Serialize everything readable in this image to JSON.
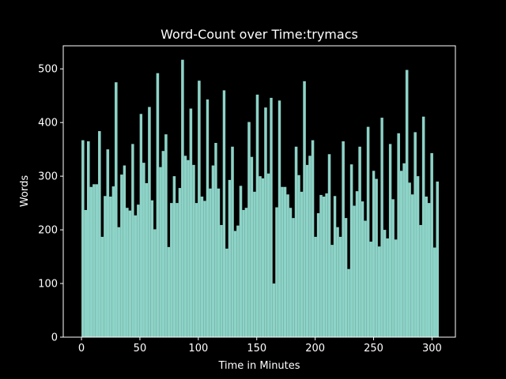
{
  "chart_data": {
    "type": "bar",
    "title": "Word-Count over Time:trymacs",
    "x_label": "Time in Minutes",
    "y_label": "Words",
    "color": "#8dd3c7",
    "x": [
      0,
      2.4,
      4.7,
      7.1,
      9.5,
      11.9,
      14.2,
      16.6,
      19,
      21.3,
      23.7,
      26.1,
      28.4,
      30.8,
      33.2,
      35.6,
      37.9,
      40.3,
      42.7,
      45,
      47.4,
      49.8,
      52.1,
      54.5,
      56.9,
      59.3,
      61.6,
      64,
      66.4,
      68.7,
      71.1,
      73.5,
      75.8,
      78.2,
      80.6,
      83,
      85.3,
      87.7,
      90.1,
      92.4,
      94.8,
      97.2,
      99.5,
      101.9,
      104.3,
      106.7,
      109,
      111.4,
      113.8,
      116.1,
      118.5,
      120.9,
      123.2,
      125.6,
      128,
      130.4,
      132.7,
      135.1,
      137.5,
      139.8,
      142.2,
      144.6,
      146.9,
      149.3,
      151.7,
      154.1,
      156.4,
      158.8,
      161.2,
      163.5,
      165.9,
      168.3,
      170.6,
      173,
      175.4,
      177.8,
      180.1,
      182.5,
      184.9,
      187.2,
      189.6,
      192,
      194.3,
      196.7,
      199.1,
      201.5,
      203.8,
      206.2,
      208.6,
      210.9,
      213.3,
      215.7,
      218,
      220.4,
      222.8,
      225.2,
      227.5,
      229.9,
      232.3,
      234.6,
      237,
      239.4,
      241.7,
      244.1,
      246.5,
      248.9,
      251.2,
      253.6,
      256,
      258.3,
      260.7,
      263.1,
      265.4,
      267.8,
      270.2,
      272.6,
      274.9,
      277.3,
      279.7,
      282,
      284.4,
      286.8,
      289.1,
      291.5,
      293.9,
      296.3,
      298.6,
      301,
      303.4
    ],
    "values": [
      367,
      237,
      365,
      280,
      285,
      285,
      384,
      187,
      263,
      350,
      262,
      281,
      475,
      205,
      303,
      320,
      241,
      236,
      360,
      227,
      247,
      416,
      325,
      287,
      429,
      255,
      201,
      492,
      317,
      347,
      378,
      168,
      250,
      300,
      250,
      278,
      517,
      338,
      330,
      426,
      321,
      250,
      478,
      262,
      254,
      443,
      277,
      320,
      362,
      277,
      209,
      460,
      165,
      293,
      355,
      198,
      208,
      282,
      237,
      241,
      401,
      336,
      271,
      452,
      300,
      296,
      428,
      305,
      446,
      100,
      242,
      441,
      280,
      280,
      266,
      241,
      222,
      355,
      302,
      271,
      477,
      321,
      338,
      367,
      187,
      231,
      265,
      262,
      268,
      341,
      172,
      263,
      205,
      187,
      365,
      222,
      127,
      322,
      245,
      272,
      355,
      253,
      217,
      392,
      178,
      310,
      295,
      169,
      409,
      200,
      184,
      360,
      257,
      182,
      380,
      310,
      324,
      498,
      288,
      266,
      382,
      300,
      209,
      411,
      262,
      250,
      343,
      167,
      290
    ],
    "xlim": [
      -15.6,
      320
    ],
    "xticks": [
      0,
      50,
      100,
      150,
      200,
      250,
      300
    ],
    "ylim": [
      0,
      543
    ],
    "yticks": [
      0,
      100,
      200,
      300,
      400,
      500
    ]
  }
}
